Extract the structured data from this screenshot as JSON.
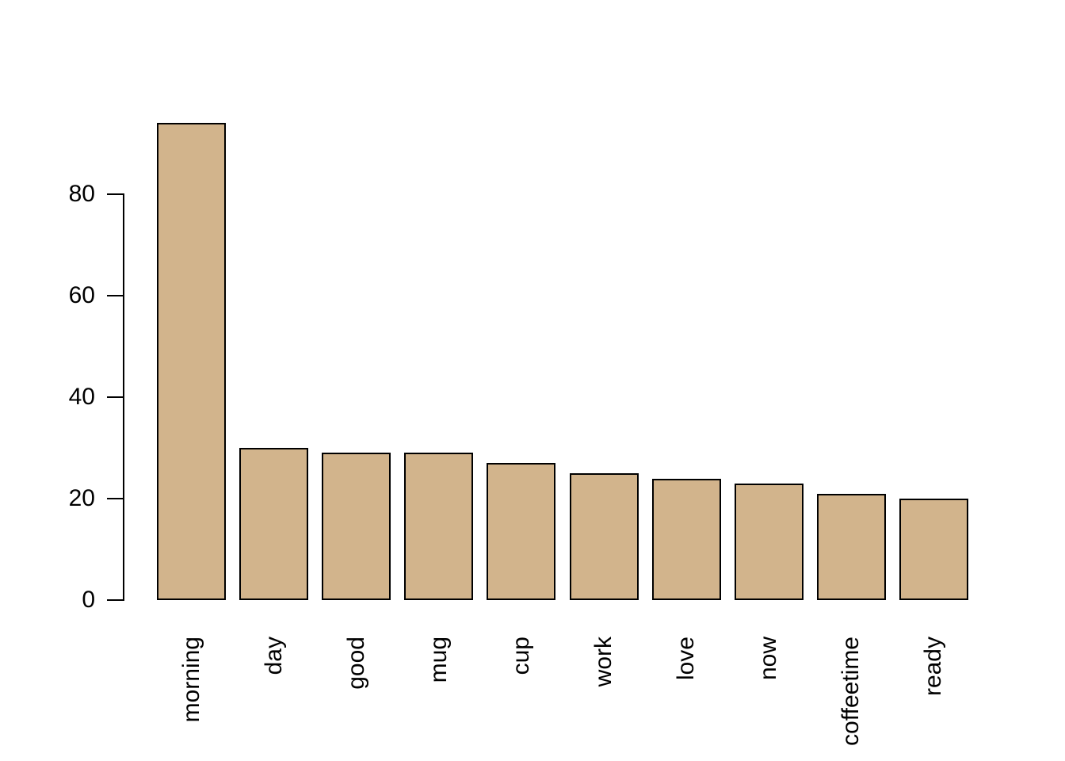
{
  "chart_data": {
    "type": "bar",
    "categories": [
      "morning",
      "day",
      "good",
      "mug",
      "cup",
      "work",
      "love",
      "now",
      "coffeetime",
      "ready"
    ],
    "values": [
      94,
      30,
      29,
      29,
      27,
      25,
      24,
      23,
      21,
      20
    ],
    "title": "",
    "xlabel": "",
    "ylabel": "",
    "ylim": [
      0,
      95
    ],
    "yticks": [
      0,
      20,
      40,
      60,
      80
    ],
    "grid": false,
    "legend_position": "none",
    "bar_color": "#D2B48C",
    "bar_border_color": "#000000",
    "axis_color": "#000000",
    "text_color": "#000000",
    "background_color": "#FFFFFF"
  }
}
